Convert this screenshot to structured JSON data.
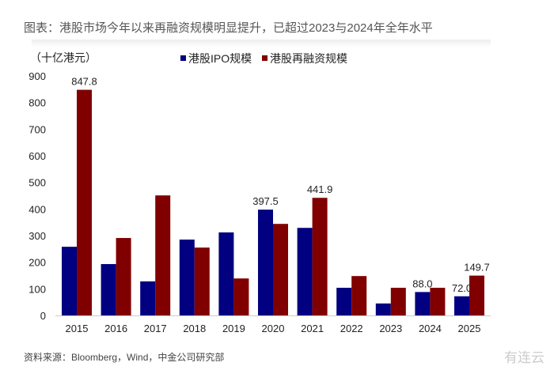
{
  "title": "图表：港股市场今年以来再融资规模明显提升，已超过2023与2024年全年水平",
  "source": "资料来源：Bloomberg，Wind，中金公司研究部",
  "watermark": "有连云",
  "chart_data": {
    "type": "bar",
    "ylabel": "（十亿港元）",
    "ylim": [
      0,
      900
    ],
    "yticks": [
      0,
      100,
      200,
      300,
      400,
      500,
      600,
      700,
      800,
      900
    ],
    "grid": false,
    "legend": "top",
    "categories": [
      "2015",
      "2016",
      "2017",
      "2018",
      "2019",
      "2020",
      "2021",
      "2022",
      "2023",
      "2024",
      "2025"
    ],
    "series": [
      {
        "name": "港股IPO规模",
        "color": "#000080",
        "values": [
          258,
          193,
          128,
          285,
          312,
          397.5,
          329,
          104,
          45,
          88.0,
          72.0
        ],
        "labels": [
          null,
          null,
          null,
          null,
          null,
          "397.5",
          null,
          null,
          null,
          "88.0",
          "72.0"
        ]
      },
      {
        "name": "港股再融资规模",
        "color": "#800000",
        "values": [
          847.8,
          291,
          451,
          255,
          139,
          344,
          441.9,
          148,
          104,
          104,
          149.7
        ],
        "labels": [
          "847.8",
          null,
          null,
          null,
          null,
          null,
          "441.9",
          null,
          null,
          null,
          "149.7"
        ]
      }
    ]
  }
}
